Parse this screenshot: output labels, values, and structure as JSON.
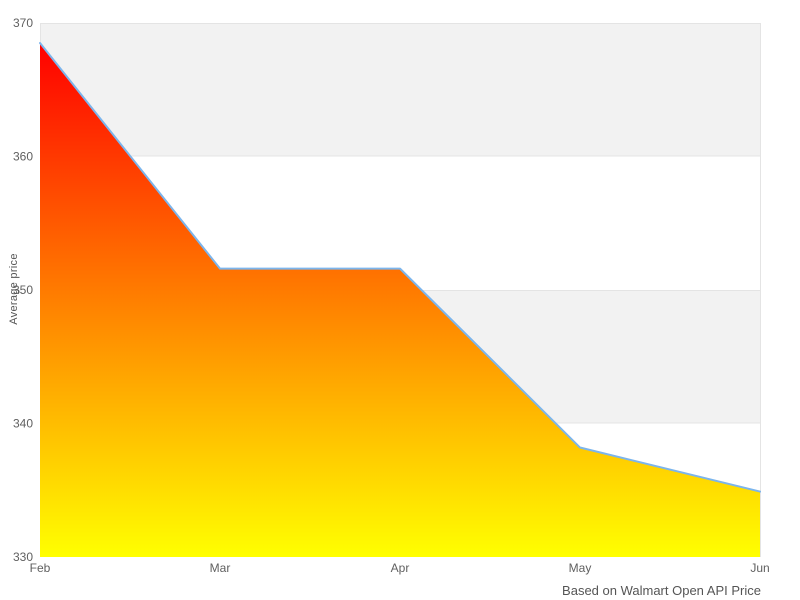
{
  "chart_data": {
    "type": "area",
    "categories": [
      "Feb",
      "Mar",
      "Apr",
      "May",
      "Jun"
    ],
    "values": [
      368.5,
      351.6,
      351.6,
      338.2,
      334.9
    ],
    "series_name": "Average price",
    "title": "",
    "xlabel": "",
    "ylabel": "Average price",
    "caption": "Based on Walmart Open API Price",
    "ylim": [
      330,
      370
    ],
    "yticks": [
      330,
      340,
      350,
      360,
      370
    ],
    "legend": "none",
    "grid": "horizontal gridlines with alternating shaded bands (370-360 and 350-340 shaded)",
    "colors": {
      "line": "#7cb5ec",
      "gradient_top": "#ff0000",
      "gradient_bottom": "#ffff00",
      "band_fill": "#f2f2f2",
      "gridline": "#e4e4e4",
      "tick_label": "#606060",
      "axis_title": "#555555",
      "caption": "#555555",
      "background": "#ffffff"
    }
  }
}
